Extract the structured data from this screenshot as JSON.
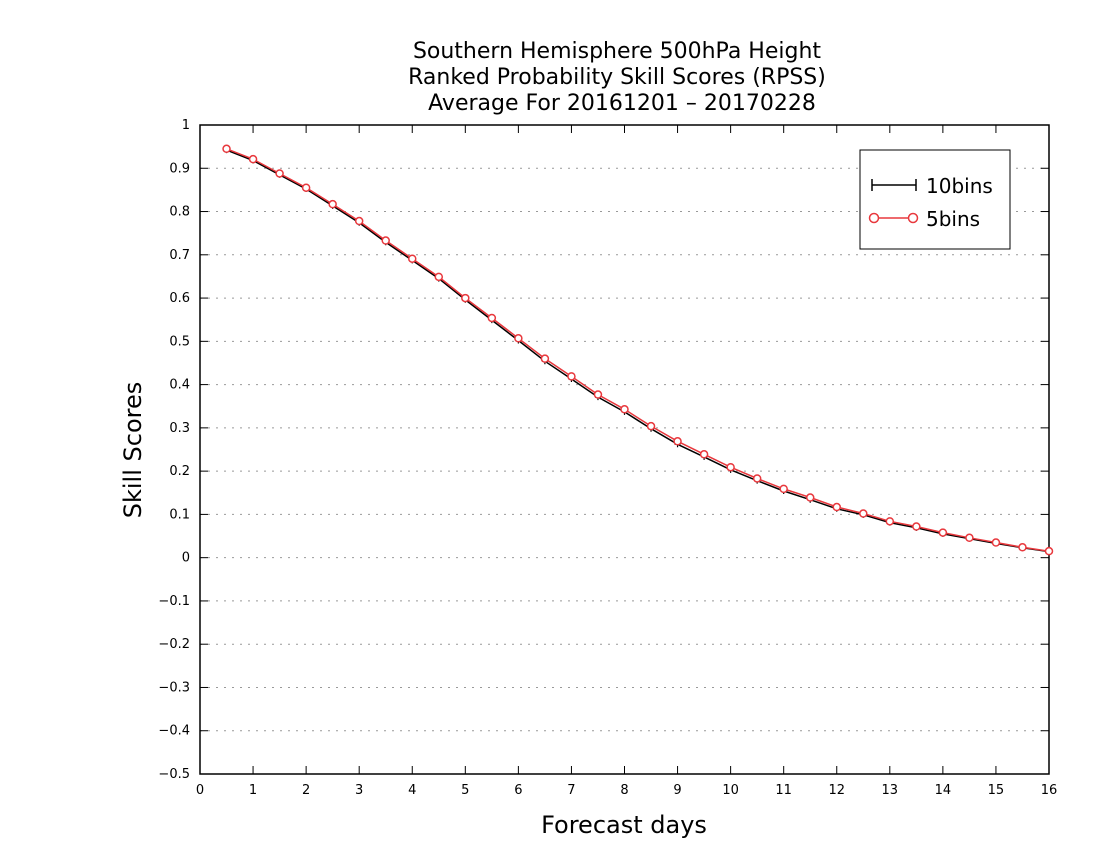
{
  "chart_data": {
    "type": "line",
    "title": [
      "Southern Hemisphere 500hPa Height",
      "Ranked Probability Skill Scores (RPSS)",
      "Average For 20161201 – 20170228"
    ],
    "xlabel": "Forecast days",
    "ylabel": "Skill Scores",
    "xlim": [
      0,
      16
    ],
    "ylim": [
      -0.5,
      1
    ],
    "xticks": [
      "0",
      "1",
      "2",
      "3",
      "4",
      "5",
      "6",
      "7",
      "8",
      "9",
      "10",
      "11",
      "12",
      "13",
      "14",
      "15",
      "16"
    ],
    "yticks": [
      "1",
      "0.9",
      "0.8",
      "0.7",
      "0.6",
      "0.5",
      "0.4",
      "0.3",
      "0.2",
      "0.1",
      "0",
      "−0.1",
      "−0.2",
      "−0.3",
      "−0.4",
      "−0.5"
    ],
    "grid": "horizontal-dotted",
    "legend_position": "top-right",
    "x": [
      0.5,
      1,
      1.5,
      2,
      2.5,
      3,
      3.5,
      4,
      4.5,
      5,
      5.5,
      6,
      6.5,
      7,
      7.5,
      8,
      8.5,
      9,
      9.5,
      10,
      10.5,
      11,
      11.5,
      12,
      12.5,
      13,
      13.5,
      14,
      14.5,
      15,
      15.5,
      16
    ],
    "series": [
      {
        "name": "10bins",
        "color": "#000000",
        "marker": "plus",
        "values": [
          0.942,
          0.918,
          0.885,
          0.852,
          0.813,
          0.774,
          0.729,
          0.687,
          0.645,
          0.596,
          0.549,
          0.502,
          0.454,
          0.413,
          0.371,
          0.337,
          0.298,
          0.262,
          0.233,
          0.203,
          0.178,
          0.154,
          0.134,
          0.113,
          0.099,
          0.081,
          0.069,
          0.055,
          0.044,
          0.033,
          0.023,
          0.014
        ]
      },
      {
        "name": "5bins",
        "color": "#e8383d",
        "marker": "circle",
        "values": [
          0.945,
          0.921,
          0.888,
          0.855,
          0.817,
          0.778,
          0.733,
          0.691,
          0.649,
          0.6,
          0.554,
          0.507,
          0.46,
          0.419,
          0.377,
          0.343,
          0.304,
          0.269,
          0.239,
          0.209,
          0.183,
          0.159,
          0.139,
          0.117,
          0.102,
          0.084,
          0.072,
          0.058,
          0.046,
          0.035,
          0.024,
          0.015
        ]
      }
    ]
  }
}
